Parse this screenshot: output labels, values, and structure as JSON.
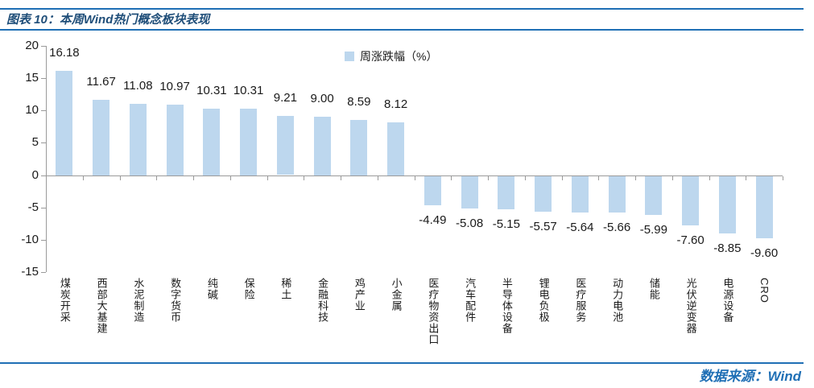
{
  "header": {
    "label": "图表 10：",
    "title": "本周Wind热门概念板块表现"
  },
  "footer": {
    "source": "数据来源：Wind"
  },
  "colors": {
    "accent_line": "#1F6FB5",
    "title_text": "#1F4E79",
    "source_text": "#1F6FB5",
    "bar_fill": "#BDD7EE",
    "axis_line": "#9a9a9a",
    "label_text": "#1a1a1a"
  },
  "chart_data": {
    "type": "bar",
    "title": "本周Wind热门概念板块表现",
    "legend": [
      "周涨跌幅（%）"
    ],
    "legend_position": "top-center",
    "grid": false,
    "xlabel": "",
    "ylabel": "",
    "ylim": [
      -15,
      20
    ],
    "yticks": [
      20,
      15,
      10,
      5,
      0,
      -5,
      -10,
      -15
    ],
    "categories": [
      "煤炭开采",
      "西部大基建",
      "水泥制造",
      "数字货币",
      "纯碱",
      "保险",
      "稀土",
      "金融科技",
      "鸡产业",
      "小金属",
      "医疗物资出口",
      "汽车配件",
      "半导体设备",
      "锂电负极",
      "医疗服务",
      "动力电池",
      "储能",
      "光伏逆变器",
      "电源设备",
      "CRO"
    ],
    "values": [
      16.18,
      11.67,
      11.08,
      10.97,
      10.31,
      10.31,
      9.21,
      9.0,
      8.59,
      8.12,
      -4.49,
      -5.08,
      -5.15,
      -5.57,
      -5.64,
      -5.66,
      -5.99,
      -7.6,
      -8.85,
      -9.6
    ],
    "value_labels": [
      "16.18",
      "11.67",
      "11.08",
      "10.97",
      "10.31",
      "10.31",
      "9.21",
      "9.00",
      "8.59",
      "8.12",
      "-4.49",
      "-5.08",
      "-5.15",
      "-5.57",
      "-5.64",
      "-5.66",
      "-5.99",
      "-7.60",
      "-8.85",
      "-9.60"
    ]
  }
}
